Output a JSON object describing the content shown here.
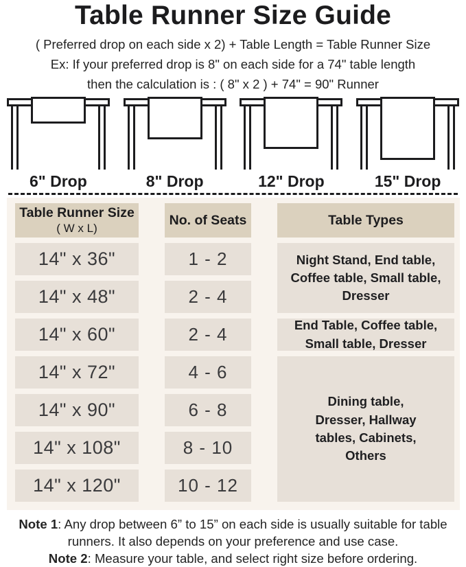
{
  "title": "Table Runner Size Guide",
  "formula": "( Preferred drop on each side x 2) + Table Length = Table Runner Size",
  "example": {
    "line1": "Ex: If your preferred drop is 8\" on each side for a 74\" table length",
    "line2": "then the calculation is : ( 8\" x 2 ) + 74\" = 90\" Runner"
  },
  "diagrams": {
    "drop_labels": [
      "6\" Drop",
      "8\" Drop",
      "12\" Drop",
      "15\" Drop"
    ]
  },
  "size_table": {
    "headers": {
      "col1_line1": "Table Runner Size",
      "col1_line2": "( W x L)",
      "col2": "No. of Seats",
      "col3": "Table Types"
    },
    "rows": [
      {
        "size": "14\" x 36\"",
        "seats": "1 - 2"
      },
      {
        "size": "14\" x 48\"",
        "seats": "2 - 4"
      },
      {
        "size": "14\" x 60\"",
        "seats": "2 - 4"
      },
      {
        "size": "14\" x 72\"",
        "seats": "4 - 6"
      },
      {
        "size": "14\" x 90\"",
        "seats": "6 - 8"
      },
      {
        "size": "14\" x 108\"",
        "seats": "8 - 10"
      },
      {
        "size": "14\" x 120\"",
        "seats": "10 - 12"
      }
    ],
    "table_types": [
      {
        "text": "Night Stand, End table, Coffee table, Small table, Dresser",
        "spans_rows": "1-2"
      },
      {
        "text": "End Table, Coffee table, Small table, Dresser",
        "spans_rows": "3"
      },
      {
        "text": "Dining table, Dresser, Hallway tables, Cabinets, Others",
        "spans_rows": "4-7"
      }
    ]
  },
  "notes": [
    {
      "label": "Note 1",
      "text": ": Any drop between 6” to 15” on each side is usually suitable for table runners. It also depends on your preference and use case."
    },
    {
      "label": "Note 2",
      "text": ": Measure your table, and select right size before ordering."
    }
  ],
  "colors": {
    "ink": "#1c1c1e",
    "header_cell_bg": "#dbd1be",
    "data_cell_bg": "#e7e0d8",
    "table_section_bg": "#f8f3ed",
    "page_bg": "#ffffff"
  }
}
